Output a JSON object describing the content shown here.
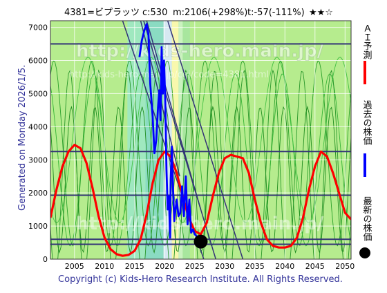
{
  "header": {
    "code": "4381=ビプラッツ",
    "current": "c:530",
    "max": "m:2106(+298%)",
    "trend": "t:-57(-111%)",
    "stars": "★★☆"
  },
  "side_left": "Generated on Monday 2026/1/5.",
  "footer": "Copyright (c) Kids-Hero Research Institute. All Rights Reserved.",
  "watermark": {
    "line1": "http://kids-hero.main.jp/",
    "line2": "http://kids-hero.main.jp/cgi/code=4381.html"
  },
  "legend": {
    "ai_forecast": "ＡＩ予測",
    "past_price": "過去の株価",
    "latest_price": "最新の株価",
    "colors": {
      "ai": "#ff0000",
      "past": "#0000ff",
      "latest": "#000000"
    }
  },
  "chart_data": {
    "type": "line",
    "xlim": [
      2001,
      2051
    ],
    "ylim": [
      0,
      7200
    ],
    "x_ticks": [
      2005,
      2010,
      2015,
      2020,
      2025,
      2030,
      2035,
      2040,
      2045,
      2050
    ],
    "y_ticks": [
      0,
      1000,
      2000,
      3000,
      4000,
      5000,
      6000,
      7000
    ],
    "grid": true,
    "horizontal_levels": [
      6500,
      3250,
      1930,
      600,
      450
    ],
    "trend_lines": [
      {
        "x": [
          2013.0,
          2026.5
        ],
        "y": [
          7200,
          0
        ]
      },
      {
        "x": [
          2016.5,
          2028.5
        ],
        "y": [
          7200,
          0
        ]
      },
      {
        "x": [
          2020.5,
          2033.0
        ],
        "y": [
          7200,
          0
        ]
      },
      {
        "x": [
          2017.0,
          2026.0
        ],
        "y": [
          7200,
          1500
        ]
      },
      {
        "x": [
          2016.0,
          2022.5
        ],
        "y": [
          7200,
          2500
        ]
      }
    ],
    "series": [
      {
        "name": "ＡＩ予測",
        "color": "#ff0000",
        "x": [
          2001,
          2002,
          2003,
          2004,
          2005,
          2006,
          2007,
          2008,
          2009,
          2010,
          2011,
          2012,
          2013,
          2014,
          2015,
          2016,
          2017,
          2018,
          2019,
          2020,
          2021,
          2022,
          2023,
          2024,
          2025,
          2026,
          2027,
          2028,
          2029,
          2030,
          2031,
          2032,
          2033,
          2034,
          2035,
          2036,
          2037,
          2038,
          2039,
          2040,
          2041,
          2042,
          2043,
          2044,
          2045,
          2046,
          2047,
          2048,
          2049,
          2050,
          2051
        ],
        "values": [
          1250,
          2100,
          2800,
          3250,
          3450,
          3350,
          2900,
          2150,
          1300,
          650,
          300,
          150,
          100,
          130,
          250,
          600,
          1350,
          2300,
          3000,
          3250,
          3100,
          2600,
          1900,
          1250,
          850,
          750,
          1100,
          1900,
          2600,
          3050,
          3150,
          3100,
          3050,
          2600,
          1800,
          1100,
          600,
          400,
          350,
          350,
          400,
          650,
          1250,
          2100,
          2800,
          3250,
          3100,
          2600,
          2000,
          1400,
          1200
        ]
      },
      {
        "name": "過去の株価",
        "color": "#0000ff",
        "x": [
          2015.8,
          2016.2,
          2016.6,
          2017.0,
          2017.3,
          2017.6,
          2018.0,
          2018.3,
          2018.6,
          2018.9,
          2019.1,
          2019.3,
          2019.5,
          2019.7,
          2019.9,
          2020.1,
          2020.3,
          2020.5,
          2020.7,
          2020.9,
          2021.0,
          2021.2,
          2021.4,
          2021.6,
          2021.8,
          2022.0,
          2022.3,
          2022.6,
          2022.9,
          2023.2,
          2023.5,
          2023.8,
          2024.1,
          2024.4,
          2024.7,
          2025.0,
          2025.3,
          2025.6,
          2025.9,
          2026.0
        ],
        "values": [
          6100,
          6600,
          6900,
          7100,
          6800,
          5300,
          4300,
          3200,
          3600,
          4600,
          5100,
          4200,
          6400,
          5000,
          6000,
          4700,
          2700,
          1500,
          1900,
          650,
          2400,
          3400,
          2100,
          1150,
          1500,
          1800,
          1300,
          1400,
          2200,
          1300,
          2500,
          1050,
          1800,
          800,
          900,
          750,
          700,
          620,
          560,
          530
        ]
      }
    ],
    "latest_point": {
      "x": 2026.0,
      "y": 530
    }
  }
}
